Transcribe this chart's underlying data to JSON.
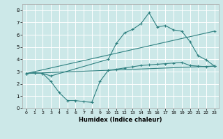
{
  "title": "",
  "xlabel": "Humidex (Indice chaleur)",
  "ylabel": "",
  "bg_color": "#cce8e8",
  "grid_color": "#ffffff",
  "line_color": "#2d7f7f",
  "xlim": [
    -0.5,
    23.5
  ],
  "ylim": [
    0,
    8.5
  ],
  "xticks": [
    0,
    1,
    2,
    3,
    4,
    5,
    6,
    7,
    8,
    9,
    10,
    11,
    12,
    13,
    14,
    15,
    16,
    17,
    18,
    19,
    20,
    21,
    22,
    23
  ],
  "yticks": [
    0,
    1,
    2,
    3,
    4,
    5,
    6,
    7,
    8
  ],
  "line1_x": [
    0,
    1,
    2,
    3,
    10,
    11,
    12,
    13,
    14,
    15,
    16,
    17,
    18,
    19,
    20,
    21,
    22,
    23
  ],
  "line1_y": [
    2.85,
    2.9,
    2.85,
    2.65,
    4.0,
    5.3,
    6.15,
    6.45,
    6.9,
    7.8,
    6.65,
    6.75,
    6.4,
    6.3,
    5.45,
    4.3,
    3.95,
    3.45
  ],
  "line2_x": [
    0,
    23
  ],
  "line2_y": [
    2.85,
    6.3
  ],
  "line3_x": [
    0,
    23
  ],
  "line3_y": [
    2.85,
    3.45
  ],
  "line4_x": [
    0,
    1,
    2,
    3,
    4,
    5,
    6,
    7,
    8,
    9,
    10,
    11,
    12,
    13,
    14,
    15,
    16,
    17,
    18,
    19,
    20,
    21,
    22,
    23
  ],
  "line4_y": [
    2.85,
    2.9,
    2.85,
    2.2,
    1.3,
    0.65,
    0.65,
    0.55,
    0.5,
    2.2,
    3.1,
    3.2,
    3.3,
    3.4,
    3.5,
    3.55,
    3.6,
    3.65,
    3.7,
    3.75,
    3.5,
    3.45,
    3.4,
    3.45
  ]
}
